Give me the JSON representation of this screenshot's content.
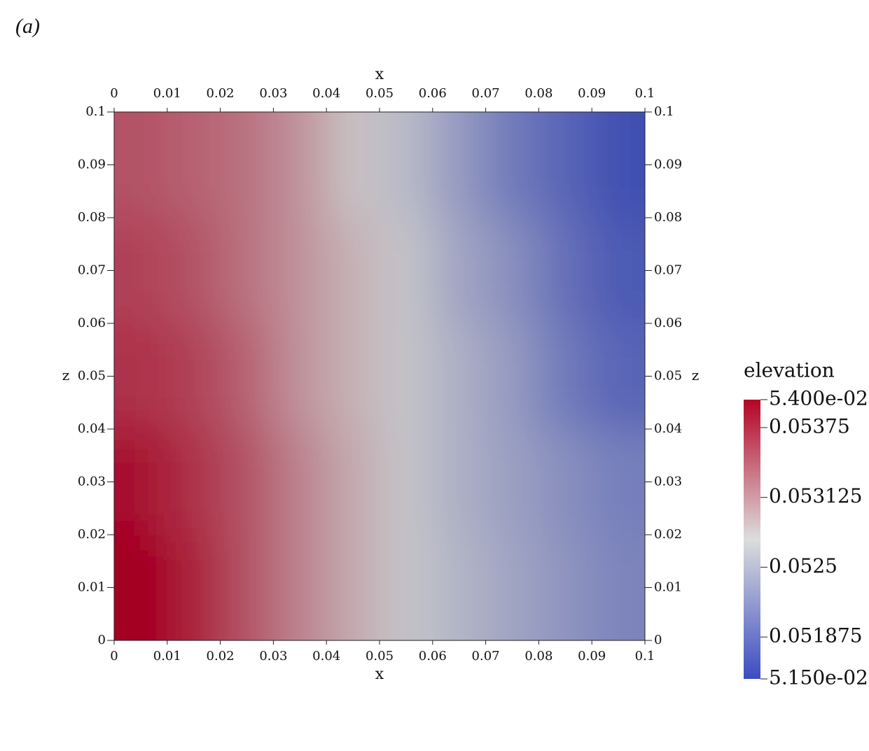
{
  "panel_label": "(a)",
  "chart_data": {
    "type": "heatmap",
    "xlabel": "x",
    "ylabel": "z",
    "xlim": [
      0,
      0.1
    ],
    "ylim": [
      0,
      0.1
    ],
    "xticks": [
      0,
      0.01,
      0.02,
      0.03,
      0.04,
      0.05,
      0.06,
      0.07,
      0.08,
      0.09,
      0.1
    ],
    "yticks": [
      0,
      0.01,
      0.02,
      0.03,
      0.04,
      0.05,
      0.06,
      0.07,
      0.08,
      0.09,
      0.1
    ],
    "x": [
      0.005,
      0.015,
      0.025,
      0.035,
      0.045,
      0.055,
      0.065,
      0.075,
      0.085,
      0.095
    ],
    "y": [
      0.01,
      0.03,
      0.05,
      0.07,
      0.09
    ],
    "values": [
      [
        0.054,
        0.0538,
        0.0535,
        0.0532,
        0.05295,
        0.0527,
        0.05255,
        0.0524,
        0.05225,
        0.0521
      ],
      [
        0.0539,
        0.0537,
        0.0535,
        0.0532,
        0.05295,
        0.0527,
        0.0525,
        0.05235,
        0.0522,
        0.05205
      ],
      [
        0.0537,
        0.0536,
        0.0534,
        0.0531,
        0.0529,
        0.0527,
        0.0525,
        0.0523,
        0.052,
        0.0518
      ],
      [
        0.0536,
        0.0535,
        0.0533,
        0.0531,
        0.0529,
        0.0527,
        0.0524,
        0.0522,
        0.0519,
        0.0517
      ],
      [
        0.0535,
        0.0534,
        0.0533,
        0.0531,
        0.0528,
        0.0526,
        0.0523,
        0.052,
        0.0518,
        0.0516
      ]
    ],
    "colormap": [
      "#3b4cc0",
      "#dddddd",
      "#b40426"
    ],
    "colorbar": {
      "title": "elevation",
      "lim": [
        0.0515,
        0.054
      ],
      "ticks": [
        {
          "value": 0.054,
          "label": "5.400e-02"
        },
        0.05375,
        0.053125,
        0.0525,
        0.051875,
        {
          "value": 0.0515,
          "label": "5.150e-02"
        }
      ]
    }
  }
}
